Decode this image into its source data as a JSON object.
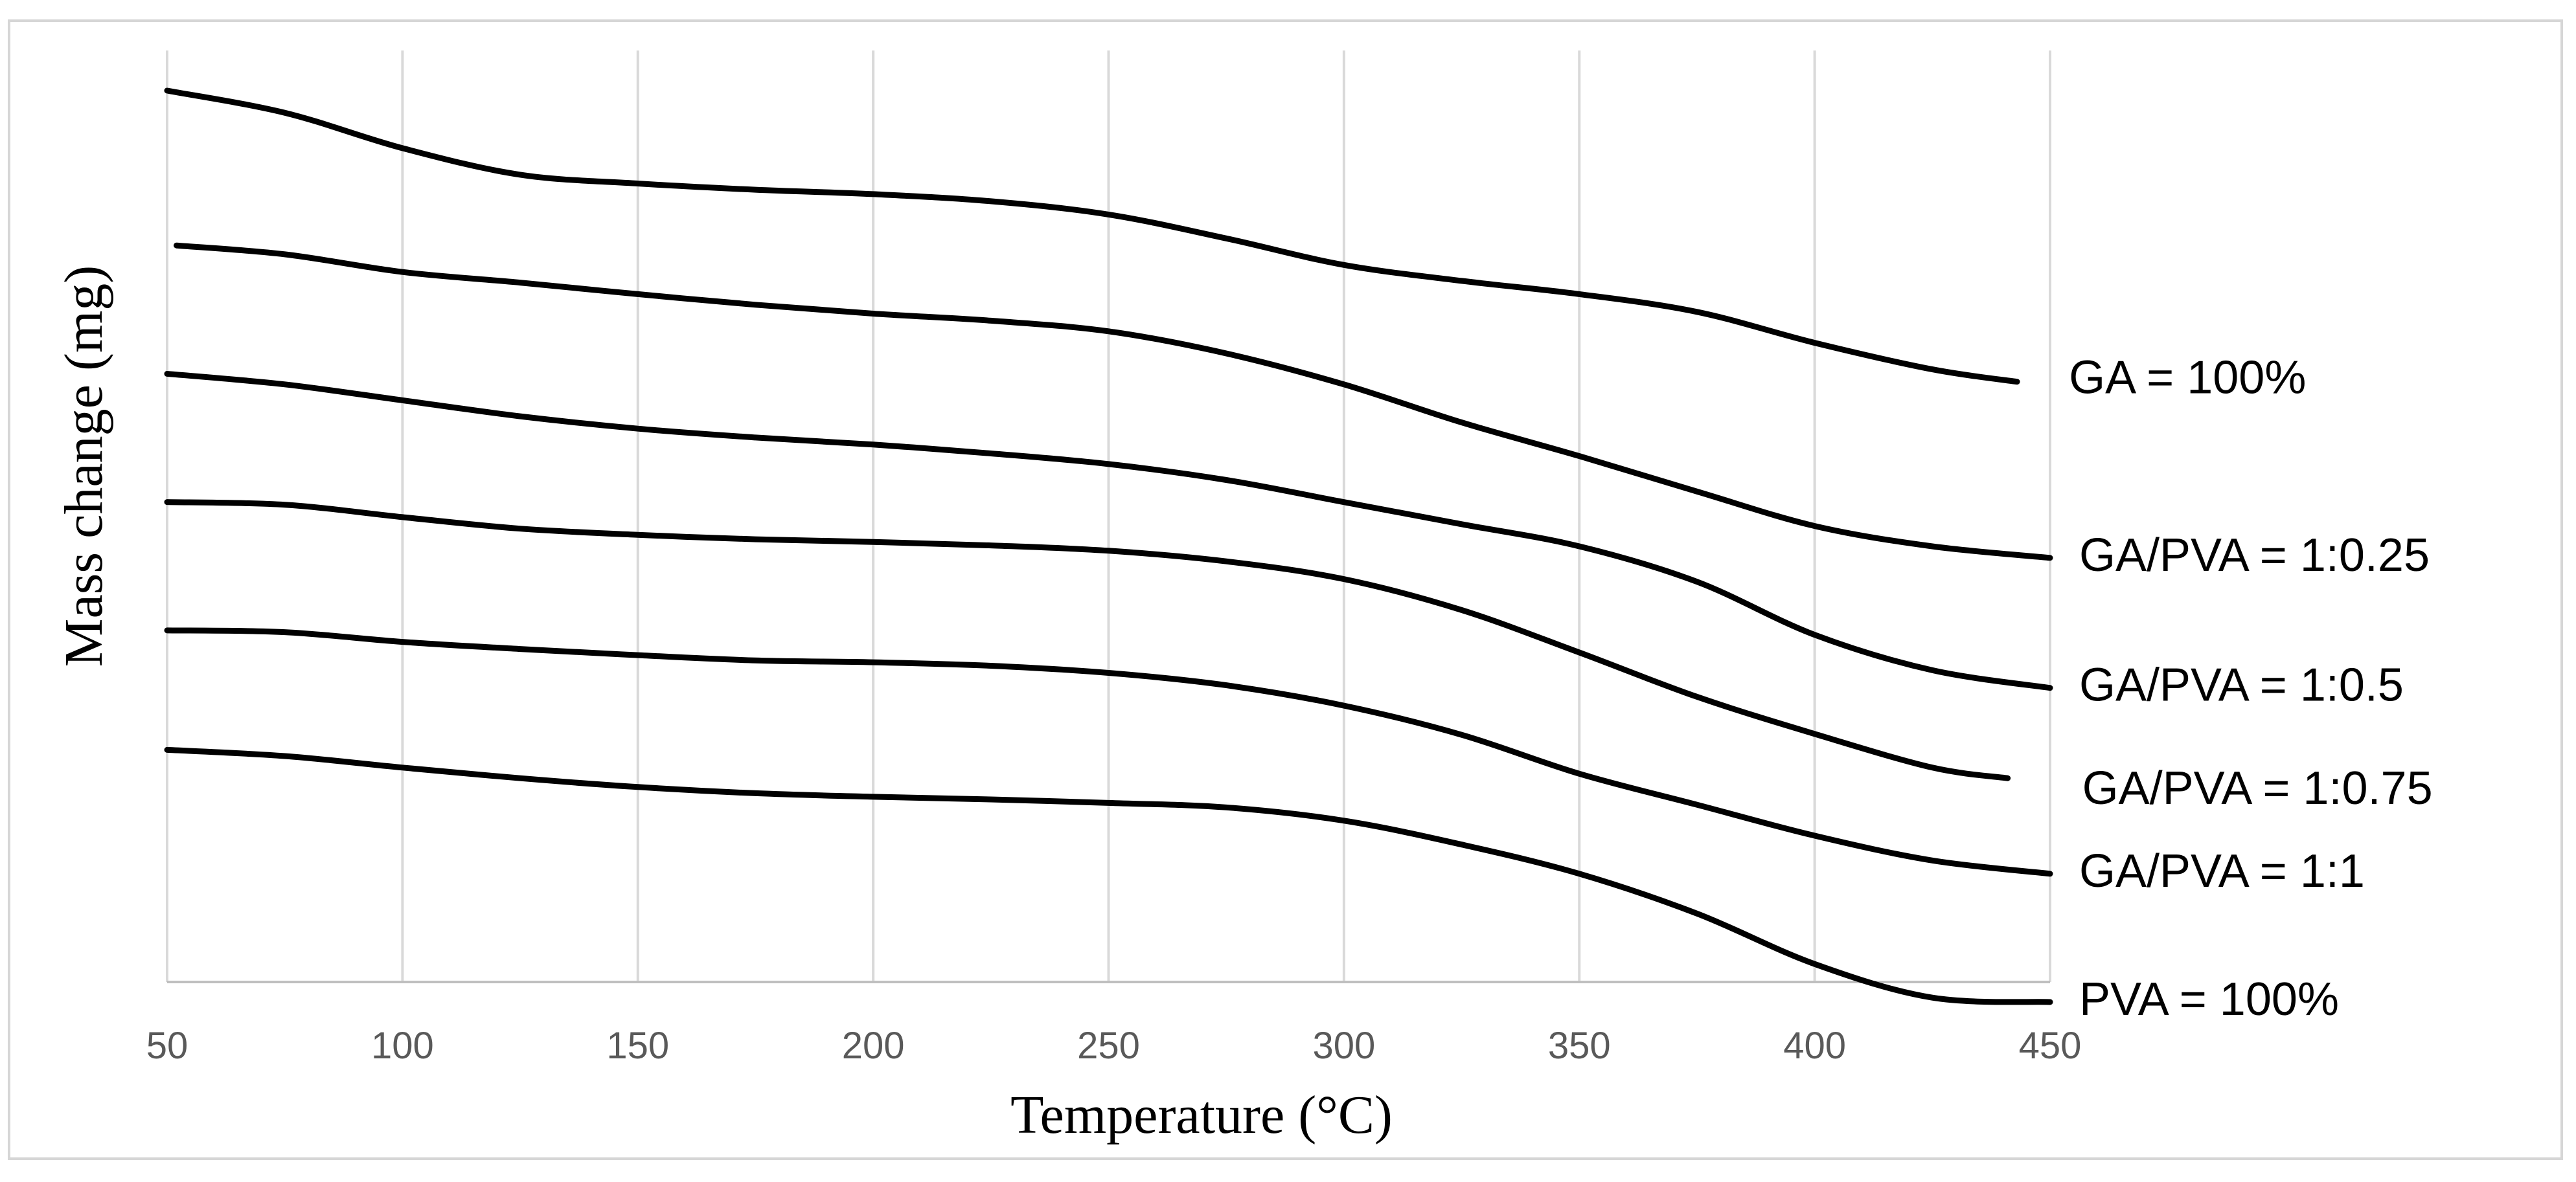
{
  "chart_data": {
    "type": "line",
    "title": "",
    "xlabel": "Temperature (°C)",
    "ylabel": "Mass change (mg)",
    "xlim": [
      50,
      450
    ],
    "ylim": [
      0,
      100
    ],
    "xticks": [
      "50",
      "100",
      "150",
      "200",
      "250",
      "300",
      "350",
      "400",
      "450"
    ],
    "grid": "vertical",
    "legend": "inline-right",
    "series": [
      {
        "name": "GA = 100%",
        "x": [
          50,
          75,
          100,
          125,
          150,
          175,
          200,
          225,
          250,
          275,
          300,
          325,
          350,
          375,
          400,
          425,
          443
        ],
        "y": [
          100,
          97.5,
          93.5,
          90.5,
          89.5,
          88.8,
          88.3,
          87.5,
          86,
          83.3,
          80.3,
          78.5,
          77,
          75,
          71.5,
          68.5,
          67.1
        ]
      },
      {
        "name": "GA/PVA = 1:0.25",
        "x": [
          52,
          75,
          100,
          125,
          150,
          175,
          200,
          225,
          250,
          275,
          300,
          325,
          350,
          375,
          400,
          425,
          450
        ],
        "y": [
          82.5,
          81.5,
          79.5,
          78.3,
          77,
          75.8,
          74.8,
          74,
          72.8,
          70.3,
          66.8,
          62.5,
          58.7,
          54.7,
          50.8,
          48.5,
          47.2
        ]
      },
      {
        "name": "GA/PVA = 1:0.5",
        "x": [
          50,
          75,
          100,
          125,
          150,
          175,
          200,
          225,
          250,
          275,
          300,
          325,
          350,
          375,
          400,
          425,
          450
        ],
        "y": [
          68,
          66.8,
          65,
          63.2,
          61.8,
          60.8,
          60,
          59,
          57.8,
          56,
          53.5,
          51,
          48.5,
          44.5,
          38.5,
          34.5,
          32.5
        ]
      },
      {
        "name": "GA/PVA = 1:0.75",
        "x": [
          50,
          75,
          100,
          125,
          150,
          175,
          200,
          225,
          250,
          275,
          300,
          325,
          350,
          375,
          400,
          425,
          441
        ],
        "y": [
          53.5,
          53.2,
          51.8,
          50.5,
          49.8,
          49.3,
          49,
          48.6,
          48,
          46.8,
          44.8,
          41.3,
          36.5,
          31.5,
          27.3,
          23.5,
          22.3
        ]
      },
      {
        "name": "GA/PVA = 1:1",
        "x": [
          50,
          75,
          100,
          125,
          150,
          175,
          200,
          225,
          250,
          275,
          300,
          325,
          350,
          375,
          400,
          425,
          450
        ],
        "y": [
          39,
          38.8,
          37.7,
          36.9,
          36.2,
          35.6,
          35.4,
          35,
          34.2,
          32.8,
          30.5,
          27.2,
          22.8,
          19.3,
          15.8,
          13,
          11.5
        ]
      },
      {
        "name": "PVA = 100%",
        "x": [
          50,
          75,
          100,
          125,
          150,
          175,
          200,
          225,
          250,
          275,
          300,
          325,
          350,
          375,
          400,
          425,
          450
        ],
        "y": [
          25.5,
          24.8,
          23.5,
          22.3,
          21.3,
          20.6,
          20.2,
          19.9,
          19.5,
          19,
          17.5,
          14.8,
          11.5,
          7,
          1.3,
          -2.5,
          -3
        ]
      }
    ]
  }
}
